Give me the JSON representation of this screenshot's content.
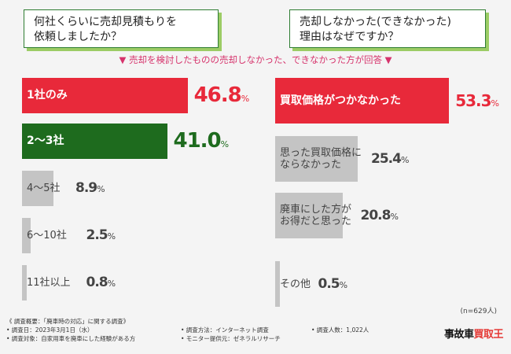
{
  "questions": {
    "left": [
      "何社くらいに売却見積もりを",
      "依頼しましたか？"
    ],
    "right": [
      "売却しなかった(できなかった)",
      "理由はなぜですか？"
    ]
  },
  "subtitle": "▼ 売却を検討したものの売却しなかった、できなかった方が回答 ▼",
  "colors": {
    "highlight_red": "#e8293a",
    "highlight_green": "#1e6b1e",
    "muted": "#c4c4c4",
    "border_green": "#2e7d32"
  },
  "chart_data": [
    {
      "type": "bar",
      "orientation": "horizontal",
      "title": "何社くらいに売却見積もりを依頼しましたか？",
      "categories": [
        "1社のみ",
        "2〜3社",
        "4〜5社",
        "6〜10社",
        "11社以上"
      ],
      "values": [
        46.8,
        41.0,
        8.9,
        2.5,
        0.8
      ],
      "unit": "%",
      "value_labels": [
        {
          "num": "46.8",
          "unit": "%"
        },
        {
          "num": "41.0",
          "unit": "%"
        },
        {
          "num": "8.9",
          "unit": "%"
        },
        {
          "num": "2.5",
          "unit": "%"
        },
        {
          "num": "0.8",
          "unit": "%"
        }
      ],
      "bar_colors": [
        "#e8293a",
        "#1e6b1e",
        "#c4c4c4",
        "#c4c4c4",
        "#c4c4c4"
      ],
      "label_colors": [
        "#ffffff",
        "#ffffff",
        "#444444",
        "#444444",
        "#444444"
      ]
    },
    {
      "type": "bar",
      "orientation": "horizontal",
      "title": "売却しなかった(できなかった)理由はなぜですか？",
      "categories": [
        [
          "買取価格がつかなかった"
        ],
        [
          "思った買取価格に",
          "ならなかった"
        ],
        [
          "廃車にした方が",
          "お得だと思った"
        ],
        [
          "その他"
        ]
      ],
      "values": [
        53.3,
        25.4,
        20.8,
        0.5
      ],
      "unit": "%",
      "value_labels": [
        {
          "num": "53.3",
          "unit": "%"
        },
        {
          "num": "25.4",
          "unit": "%"
        },
        {
          "num": "20.8",
          "unit": "%"
        },
        {
          "num": "0.5",
          "unit": "%"
        }
      ],
      "bar_colors": [
        "#e8293a",
        "#c4c4c4",
        "#c4c4c4",
        "#c4c4c4"
      ],
      "label_colors": [
        "#ffffff",
        "#444444",
        "#444444",
        "#444444"
      ]
    }
  ],
  "n_note": "(n=629人)",
  "footer": {
    "overview": "《 調査概要：「廃車時の対応」に関する調査》",
    "date": "• 調査日：2023年3月1日（水）",
    "target": "• 調査対象：自家用車を廃車にした経験がある方",
    "method": "• 調査方法：インターネット調査",
    "provider": "• モニター提供元：ゼネラルリサーチ",
    "count": "• 調査人数：1,022人"
  },
  "logo": {
    "main": "事故車",
    "accent": "買取王"
  }
}
